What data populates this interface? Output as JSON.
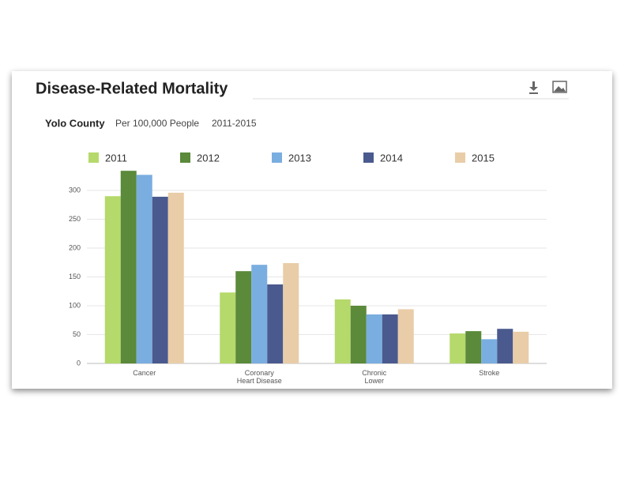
{
  "chart_data": {
    "type": "bar",
    "title": "Disease-Related Mortality",
    "subtitle": {
      "region": "Yolo County",
      "unit": "Per 100,000 People",
      "period": "2011-2015"
    },
    "categories": [
      "Cancer",
      "Coronary\nHeart Disease",
      "Chronic\nLower",
      "Stroke"
    ],
    "series": [
      {
        "name": "2011",
        "color": "#b5d96a",
        "values": [
          290,
          123,
          111,
          52
        ]
      },
      {
        "name": "2012",
        "color": "#5a8a3a",
        "values": [
          334,
          160,
          100,
          56
        ]
      },
      {
        "name": "2013",
        "color": "#7aaee0",
        "values": [
          327,
          171,
          85,
          42
        ]
      },
      {
        "name": "2014",
        "color": "#4a5a8e",
        "values": [
          289,
          137,
          85,
          60
        ]
      },
      {
        "name": "2015",
        "color": "#e9cda8",
        "values": [
          296,
          174,
          94,
          55
        ]
      }
    ],
    "ylim": [
      0,
      350
    ],
    "yticks": [
      0,
      50,
      100,
      150,
      200,
      250,
      300
    ],
    "grid": true,
    "legend": "top"
  }
}
